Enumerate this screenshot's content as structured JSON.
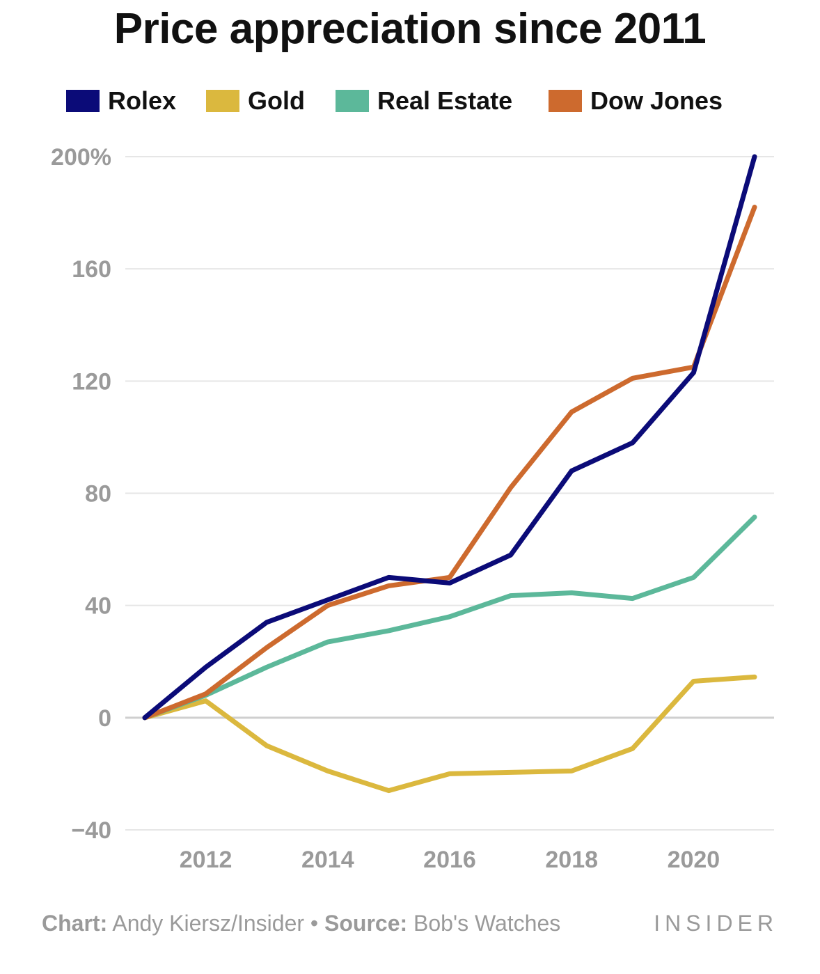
{
  "title": "Price appreciation since 2011",
  "legend": [
    {
      "label": "Rolex",
      "color": "#0b0b78"
    },
    {
      "label": "Gold",
      "color": "#dbb83e"
    },
    {
      "label": "Real Estate",
      "color": "#5cb89a"
    },
    {
      "label": "Dow Jones",
      "color": "#cd6a2e"
    }
  ],
  "footer": {
    "chart_label": "Chart:",
    "chart_value": "Andy Kiersz/Insider",
    "separator": "•",
    "source_label": "Source:",
    "source_value": "Bob's Watches",
    "brand": "INSIDER"
  },
  "chart_data": {
    "type": "line",
    "title": "Price appreciation since 2011",
    "x": [
      2011,
      2012,
      2013,
      2014,
      2015,
      2016,
      2017,
      2018,
      2019,
      2020,
      2021
    ],
    "xticks": [
      2012,
      2014,
      2016,
      2018,
      2020
    ],
    "ylim": [
      -40,
      200
    ],
    "yticks": [
      {
        "value": 200,
        "label": "200%"
      },
      {
        "value": 160,
        "label": "160"
      },
      {
        "value": 120,
        "label": "120"
      },
      {
        "value": 80,
        "label": "80"
      },
      {
        "value": 40,
        "label": "40"
      },
      {
        "value": 0,
        "label": "0"
      },
      {
        "value": -40,
        "label": "−40"
      }
    ],
    "grid": true,
    "legend_position": "top",
    "series": [
      {
        "name": "Rolex",
        "color": "#0b0b78",
        "values": [
          0,
          18,
          34,
          42,
          50,
          48,
          58,
          88,
          98,
          123,
          200
        ]
      },
      {
        "name": "Gold",
        "color": "#dbb83e",
        "values": [
          0,
          6,
          -10,
          -19,
          -26,
          -20,
          -19.5,
          -19,
          -11,
          13,
          14.5
        ]
      },
      {
        "name": "Real Estate",
        "color": "#5cb89a",
        "values": [
          0,
          8,
          18,
          27,
          31,
          36,
          43.5,
          44.5,
          42.5,
          50,
          71.5
        ]
      },
      {
        "name": "Dow Jones",
        "color": "#cd6a2e",
        "values": [
          0,
          8.5,
          25,
          40,
          47,
          50,
          82,
          109,
          121,
          125,
          182
        ]
      }
    ]
  }
}
